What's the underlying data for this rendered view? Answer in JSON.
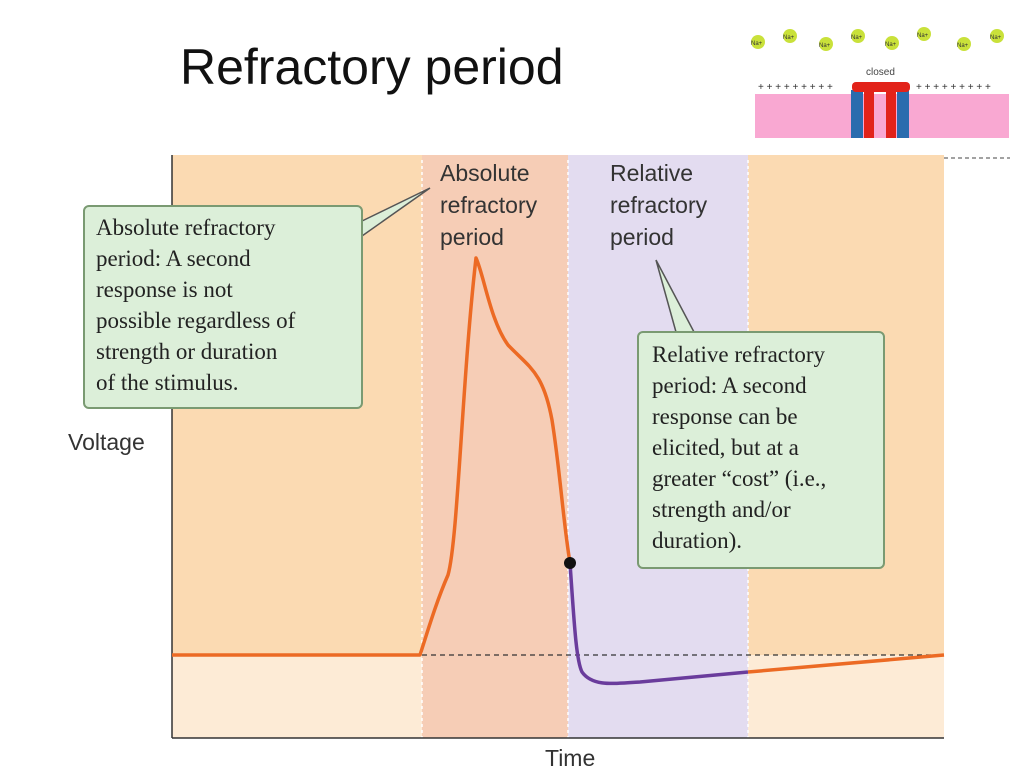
{
  "title": "Refractory period",
  "colors": {
    "bg_peach": "#fbdab2",
    "bg_light": "#fdebd6",
    "absolute_band": "#f6cdb6",
    "relative_band": "#e3dcf0",
    "curve_orange": "#ec6a24",
    "curve_purple": "#6a3c9c",
    "callout_fill": "#dcefd9",
    "callout_stroke": "#7a9a72"
  },
  "diagram": {
    "y_label": "Voltage",
    "x_label": "Time",
    "absolute_label": [
      "Absolute",
      "refractory",
      "period"
    ],
    "relative_label": [
      "Relative",
      "refractory",
      "period"
    ],
    "absolute_callout": [
      "Absolute refractory",
      "period: A second",
      "response is not",
      "possible regardless of",
      "strength or duration",
      "of the stimulus."
    ],
    "relative_callout": [
      "Relative refractory",
      "period: A second",
      "response can be",
      "elicited, but at a",
      "greater “cost” (i.e.,",
      "strength and/or",
      "duration)."
    ]
  },
  "channel_inset": {
    "state_label": "closed",
    "ion_label": "Na+",
    "charge_row_left": "+ + + + + + + + +",
    "charge_row_right": "+ + + + + + + + +"
  }
}
